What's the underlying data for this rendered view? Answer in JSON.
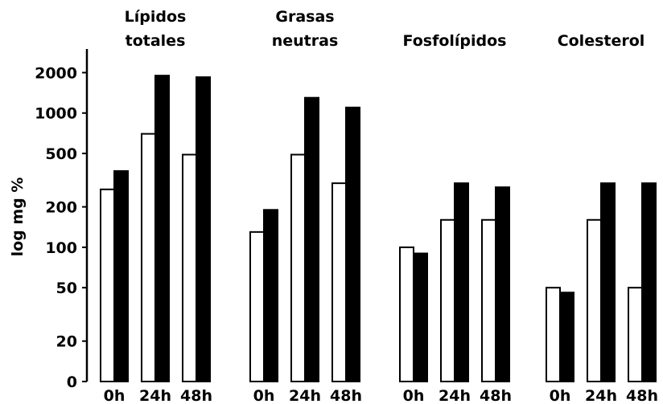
{
  "chart_data": {
    "type": "bar",
    "log": true,
    "ylabel": "log mg %",
    "ylim": [
      10,
      3000
    ],
    "yticks": [
      {
        "value": 10,
        "label": "0"
      },
      20,
      50,
      100,
      200,
      500,
      1000,
      2000
    ],
    "colors": [
      "#ffffff",
      "#000000"
    ],
    "groups": [
      {
        "name": "Lípidos totales",
        "categories": [
          "0h",
          "24h",
          "48h"
        ],
        "series": [
          {
            "color": "#ffffff",
            "values": [
              270,
              700,
              490
            ]
          },
          {
            "color": "#000000",
            "values": [
              370,
              1900,
              1850
            ]
          }
        ]
      },
      {
        "name": "Grasas neutras",
        "categories": [
          "0h",
          "24h",
          "48h"
        ],
        "series": [
          {
            "color": "#ffffff",
            "values": [
              130,
              490,
              300
            ]
          },
          {
            "color": "#000000",
            "values": [
              190,
              1300,
              1100
            ]
          }
        ]
      },
      {
        "name": "Fosfolípidos",
        "categories": [
          "0h",
          "24h",
          "48h"
        ],
        "series": [
          {
            "color": "#ffffff",
            "values": [
              100,
              160,
              160
            ]
          },
          {
            "color": "#000000",
            "values": [
              90,
              300,
              280
            ]
          }
        ]
      },
      {
        "name": "Colesterol",
        "categories": [
          "0h",
          "24h",
          "48h"
        ],
        "series": [
          {
            "color": "#ffffff",
            "values": [
              50,
              160,
              50
            ]
          },
          {
            "color": "#000000",
            "values": [
              46,
              300,
              300
            ]
          }
        ]
      }
    ]
  }
}
